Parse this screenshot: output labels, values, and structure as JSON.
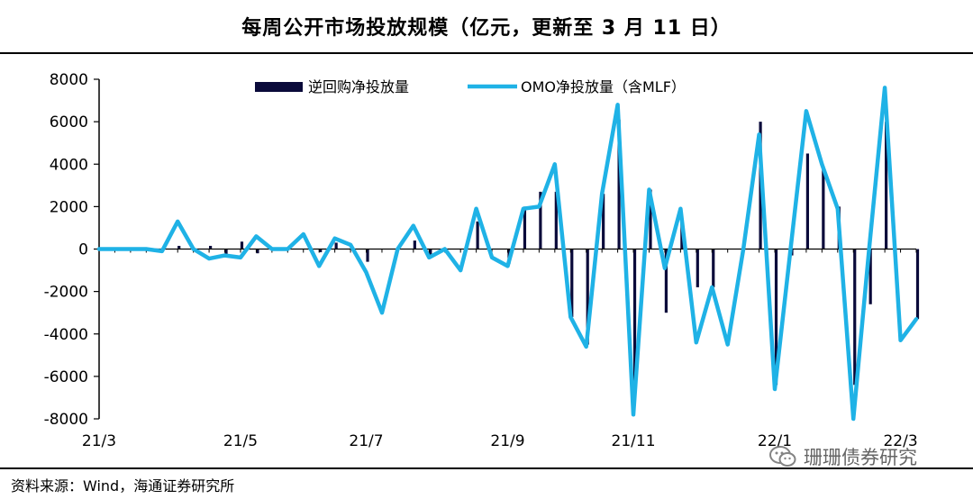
{
  "chart_data": {
    "type": "bar+line",
    "title": "每周公开市场投放规模（亿元，更新至 3 月 11 日）",
    "ylim": [
      -8000,
      8000
    ],
    "yticks": [
      -8000,
      -6000,
      -4000,
      -2000,
      0,
      2000,
      4000,
      6000,
      8000
    ],
    "x_tick_labels": [
      "21/3",
      "21/5",
      "21/7",
      "21/9",
      "21/11",
      "22/1",
      "22/3"
    ],
    "x_tick_index": [
      0,
      9,
      17,
      26,
      34,
      43,
      51
    ],
    "legend_position": "top",
    "series": [
      {
        "name": "逆回购净投放量",
        "type": "bar",
        "color": "#0a0a3a",
        "values": [
          0,
          0,
          0,
          0,
          0,
          150,
          0,
          150,
          -250,
          350,
          -200,
          0,
          0,
          0,
          -150,
          300,
          100,
          -600,
          0,
          0,
          400,
          -300,
          0,
          0,
          1300,
          0,
          -700,
          2000,
          2700,
          2700,
          -3200,
          -4500,
          2600,
          6100,
          -6900,
          2800,
          -3000,
          1500,
          -1800,
          -1800,
          0,
          0,
          6000,
          -6400,
          -300,
          4500,
          3800,
          2000,
          -6400,
          -2600,
          6000,
          0,
          -3300
        ]
      },
      {
        "name": "OMO净投放量（含MLF）",
        "type": "line",
        "color": "#1fb2e6",
        "values": [
          0,
          0,
          0,
          0,
          -100,
          1300,
          0,
          -450,
          -300,
          -400,
          600,
          0,
          0,
          700,
          -800,
          500,
          200,
          -1100,
          -3000,
          0,
          1100,
          -400,
          0,
          -1000,
          1900,
          -400,
          -800,
          1900,
          2000,
          4000,
          -3200,
          -4600,
          2600,
          6800,
          -7800,
          2800,
          -900,
          1900,
          -4400,
          -1800,
          -4500,
          0,
          5400,
          -6600,
          0,
          6500,
          4000,
          1900,
          -8000,
          0,
          7600,
          -4300,
          -3300
        ]
      }
    ]
  },
  "source_text": "资料来源：Wind，海通证券研究所",
  "watermark_text": "珊珊债券研究"
}
